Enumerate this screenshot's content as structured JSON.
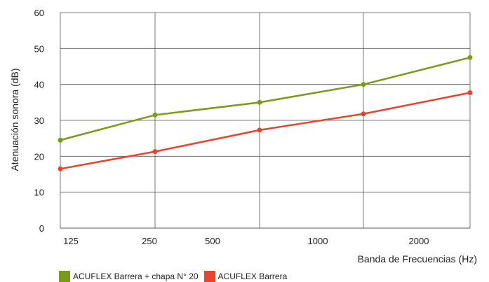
{
  "chart_data": {
    "type": "line",
    "xlabel": "Banda de Frecuencias (Hz)",
    "ylabel": "Atenuación sonora (dB)",
    "ylim": [
      0,
      60
    ],
    "yticks": [
      0,
      10,
      20,
      30,
      40,
      50,
      60
    ],
    "xticks": [
      {
        "label": "125",
        "index": 0
      },
      {
        "label": "250",
        "index": 1.0
      },
      {
        "label": "500",
        "index": 1.9
      },
      {
        "label": "1000",
        "index": 3.0
      },
      {
        "label": "2000",
        "index": 4.0
      }
    ],
    "grid": true,
    "legend_position": "bottom-left",
    "series": [
      {
        "name": "ACUFLEX Barrera + chapa N° 20",
        "color": "#7a9a1a",
        "points": [
          {
            "index": 0,
            "y": 24.5
          },
          {
            "index": 1.0,
            "y": 31.5
          },
          {
            "index": 2.0,
            "y": 35
          },
          {
            "index": 3.0,
            "y": 40
          },
          {
            "index": 4.0,
            "y": 47.5
          }
        ]
      },
      {
        "name": "ACUFLEX Barrera",
        "color": "#e8432e",
        "points": [
          {
            "index": 0,
            "y": 16.5
          },
          {
            "index": 1.0,
            "y": 21.3
          },
          {
            "index": 2.0,
            "y": 27.3
          },
          {
            "index": 3.0,
            "y": 31.8
          },
          {
            "index": 4.0,
            "y": 37.7
          }
        ]
      }
    ]
  }
}
